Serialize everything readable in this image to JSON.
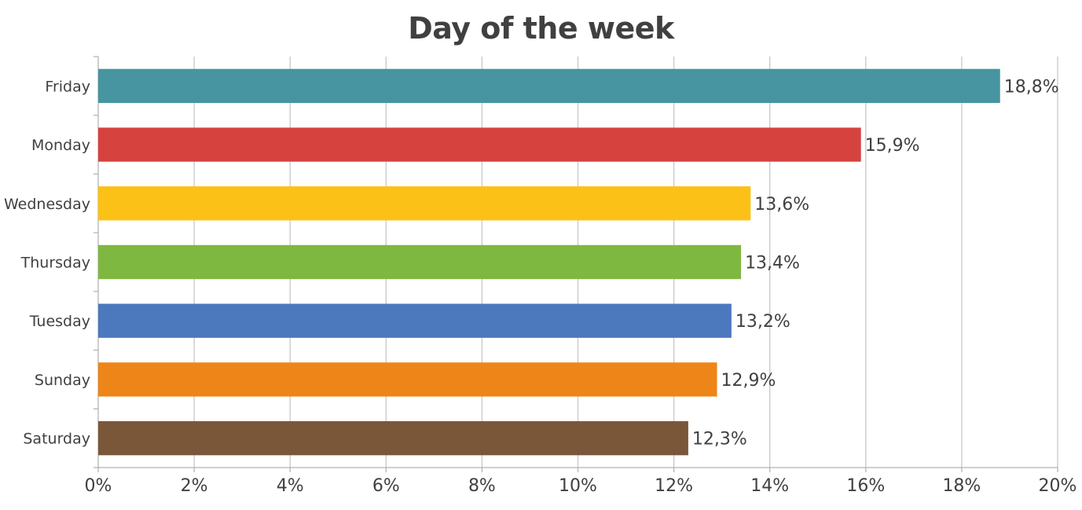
{
  "chart_data": {
    "type": "bar",
    "orientation": "horizontal",
    "title": "Day of the week",
    "xlabel": "",
    "ylabel": "",
    "xlim": [
      0,
      20
    ],
    "x_ticks": [
      "0%",
      "2%",
      "4%",
      "6%",
      "8%",
      "10%",
      "12%",
      "14%",
      "16%",
      "18%",
      "20%"
    ],
    "grid": true,
    "legend": "none",
    "categories": [
      "Friday",
      "Monday",
      "Wednesday",
      "Thursday",
      "Tuesday",
      "Sunday",
      "Saturday"
    ],
    "values": [
      18.8,
      15.9,
      13.6,
      13.4,
      13.2,
      12.9,
      12.3
    ],
    "data_labels": [
      "18,8%",
      "15,9%",
      "13,6%",
      "13,4%",
      "13,2%",
      "12,9%",
      "12,3%"
    ],
    "colors": [
      "#4795a0",
      "#d6433e",
      "#fcc116",
      "#7fb841",
      "#4c78bd",
      "#ee8518",
      "#7b5739"
    ]
  }
}
